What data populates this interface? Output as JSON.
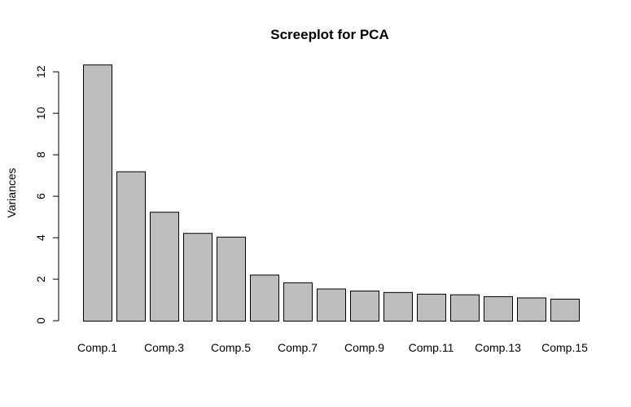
{
  "chart_data": {
    "type": "bar",
    "title": "Screeplot for PCA",
    "xlabel": "",
    "ylabel": "Variances",
    "categories": [
      "Comp.1",
      "Comp.2",
      "Comp.3",
      "Comp.4",
      "Comp.5",
      "Comp.6",
      "Comp.7",
      "Comp.8",
      "Comp.9",
      "Comp.10",
      "Comp.11",
      "Comp.12",
      "Comp.13",
      "Comp.14",
      "Comp.15"
    ],
    "visible_category_labels": [
      "Comp.1",
      "Comp.3",
      "Comp.5",
      "Comp.7",
      "Comp.9",
      "Comp.11",
      "Comp.13",
      "Comp.15"
    ],
    "values": [
      12.35,
      7.2,
      5.25,
      4.23,
      4.05,
      2.22,
      1.85,
      1.55,
      1.45,
      1.38,
      1.3,
      1.27,
      1.18,
      1.12,
      1.06
    ],
    "ylim": [
      0,
      12.4
    ],
    "yticks": [
      0,
      2,
      4,
      6,
      8,
      10,
      12
    ],
    "grid": false,
    "legend": "none",
    "bar_color": "#bebebe",
    "bar_border_color": "#000000"
  }
}
